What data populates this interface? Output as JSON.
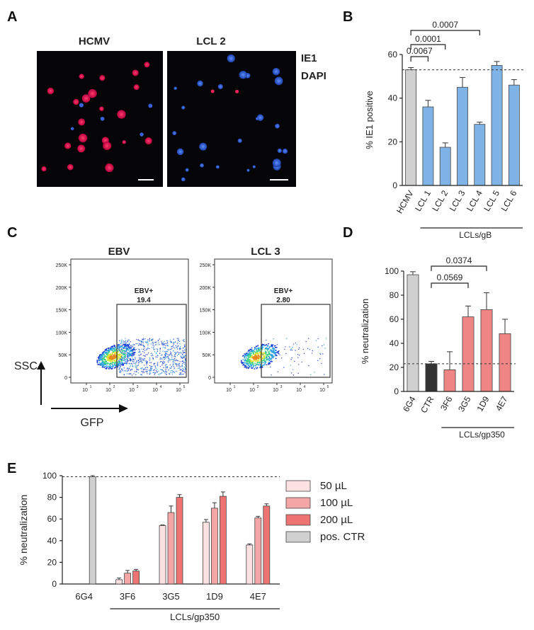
{
  "panels": {
    "A": {
      "letter": "A",
      "images": [
        {
          "title": "HCMV"
        },
        {
          "title": "LCL 2"
        }
      ],
      "legend": [
        {
          "label": "IE1",
          "color": "#e8242e"
        },
        {
          "label": "DAPI",
          "color": "#3a8fe0"
        }
      ]
    },
    "C": {
      "letter": "C",
      "plots": [
        {
          "title": "EBV",
          "gate_label": "EBV+",
          "gate_value": "19.4"
        },
        {
          "title": "LCL 3",
          "gate_label": "EBV+",
          "gate_value": "2.80"
        }
      ],
      "y_ticks": [
        "250K",
        "200K",
        "150K",
        "100K",
        "50K",
        "0"
      ],
      "x_ticks": [
        "10",
        "10",
        "10",
        "10",
        "10"
      ],
      "x_tick_exp": [
        "1",
        "2",
        "3",
        "4",
        "5"
      ],
      "ssc_label": "SSC",
      "gfp_label": "GFP"
    }
  },
  "chart_data": [
    {
      "panel": "B",
      "type": "bar",
      "ylabel": "% IE1 positive",
      "ylim": [
        0,
        60
      ],
      "yticks": [
        0,
        20,
        40,
        60
      ],
      "categories": [
        "HCMV",
        "LCL 1",
        "LCL 2",
        "LCL 3",
        "LCL 4",
        "LCL 5",
        "LCL 6"
      ],
      "values": [
        53,
        36,
        17.5,
        45,
        28,
        55,
        46
      ],
      "errors": [
        1,
        3,
        2,
        4.5,
        1,
        1.8,
        2.5
      ],
      "colors": [
        "#d0d0d0",
        "#7fb3e6",
        "#7fb3e6",
        "#7fb3e6",
        "#7fb3e6",
        "#7fb3e6",
        "#7fb3e6"
      ],
      "reference_line": 53,
      "group_label": "LCLs/gB",
      "comparisons": [
        {
          "from": "HCMV",
          "to": "LCL 1",
          "label": "0.0067"
        },
        {
          "from": "HCMV",
          "to": "LCL 2",
          "label": "0.0001"
        },
        {
          "from": "HCMV",
          "to": "LCL 4",
          "label": "0.0007"
        }
      ]
    },
    {
      "panel": "D",
      "type": "bar",
      "ylabel": "% neutralization",
      "ylim": [
        0,
        100
      ],
      "yticks": [
        0,
        20,
        40,
        60,
        80,
        100
      ],
      "categories": [
        "6G4",
        "CTR",
        "3F6",
        "3G5",
        "1D9",
        "4E7"
      ],
      "values": [
        97,
        23,
        18,
        62,
        68,
        48
      ],
      "errors": [
        2.5,
        2,
        15,
        9,
        14,
        12
      ],
      "colors": [
        "#d0d0d0",
        "#333333",
        "#ef8585",
        "#ef8585",
        "#ef8585",
        "#ef8585"
      ],
      "reference_line": 23,
      "group_label": "LCLs/gp350",
      "comparisons": [
        {
          "from": "CTR",
          "to": "3G5",
          "label": "0.0569"
        },
        {
          "from": "CTR",
          "to": "1D9",
          "label": "0.0374"
        }
      ]
    },
    {
      "panel": "E",
      "type": "bar",
      "ylabel": "% neutralization",
      "ylim": [
        0,
        100
      ],
      "yticks": [
        0,
        20,
        40,
        60,
        80,
        100
      ],
      "categories": [
        "6G4",
        "3F6",
        "3G5",
        "1D9",
        "4E7"
      ],
      "series": [
        {
          "name": "50 µL",
          "color": "#fbe1e1",
          "values": [
            null,
            4,
            54,
            57,
            36
          ],
          "errors": [
            0,
            1.5,
            0.5,
            2.5,
            1
          ]
        },
        {
          "name": "100 µL",
          "color": "#f4a6a6",
          "values": [
            null,
            10,
            66,
            70,
            61
          ],
          "errors": [
            0,
            2.5,
            6,
            5,
            1.5
          ]
        },
        {
          "name": "200 µL",
          "color": "#ee7373",
          "values": [
            null,
            12,
            80,
            81,
            72
          ],
          "errors": [
            0,
            1.5,
            2.5,
            4,
            2
          ]
        },
        {
          "name": "pos. CTR",
          "color": "#d0d0d0",
          "values": [
            99,
            null,
            null,
            null,
            null
          ],
          "errors": [
            1,
            0,
            0,
            0,
            0
          ]
        }
      ],
      "reference_line": 99,
      "group_label": "LCLs/gp350",
      "legend": "right"
    }
  ]
}
